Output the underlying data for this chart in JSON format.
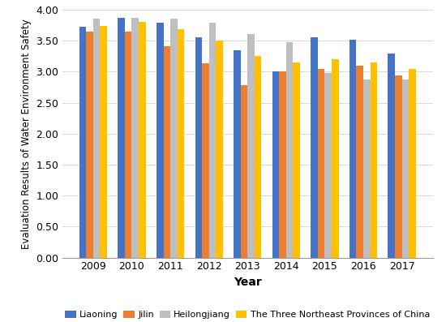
{
  "years": [
    2009,
    2010,
    2011,
    2012,
    2013,
    2014,
    2015,
    2016,
    2017
  ],
  "liaoning": [
    3.72,
    3.87,
    3.79,
    3.56,
    3.35,
    3.0,
    3.56,
    3.51,
    3.29
  ],
  "jilin": [
    3.64,
    3.65,
    3.41,
    3.14,
    2.78,
    3.0,
    3.05,
    3.09,
    2.94
  ],
  "heilongjiang": [
    3.85,
    3.87,
    3.86,
    3.79,
    3.6,
    3.48,
    2.98,
    2.87,
    2.87
  ],
  "three_northeast": [
    3.74,
    3.8,
    3.69,
    3.5,
    3.25,
    3.15,
    3.2,
    3.15,
    3.05
  ],
  "colors": {
    "liaoning": "#4472C4",
    "jilin": "#ED7D31",
    "heilongjiang": "#BFBFBF",
    "three_northeast": "#FFC000"
  },
  "legend_labels": [
    "Liaoning",
    "Jilin",
    "Heilongjiang",
    "The Three Northeast Provinces of China"
  ],
  "xlabel": "Year",
  "ylabel": "Evaluation Results of Water Environment Safety",
  "ylim": [
    0.0,
    4.0
  ],
  "yticks": [
    0.0,
    0.5,
    1.0,
    1.5,
    2.0,
    2.5,
    3.0,
    3.5,
    4.0
  ],
  "background_color": "#ffffff",
  "grid_color": "#d9d9d9"
}
